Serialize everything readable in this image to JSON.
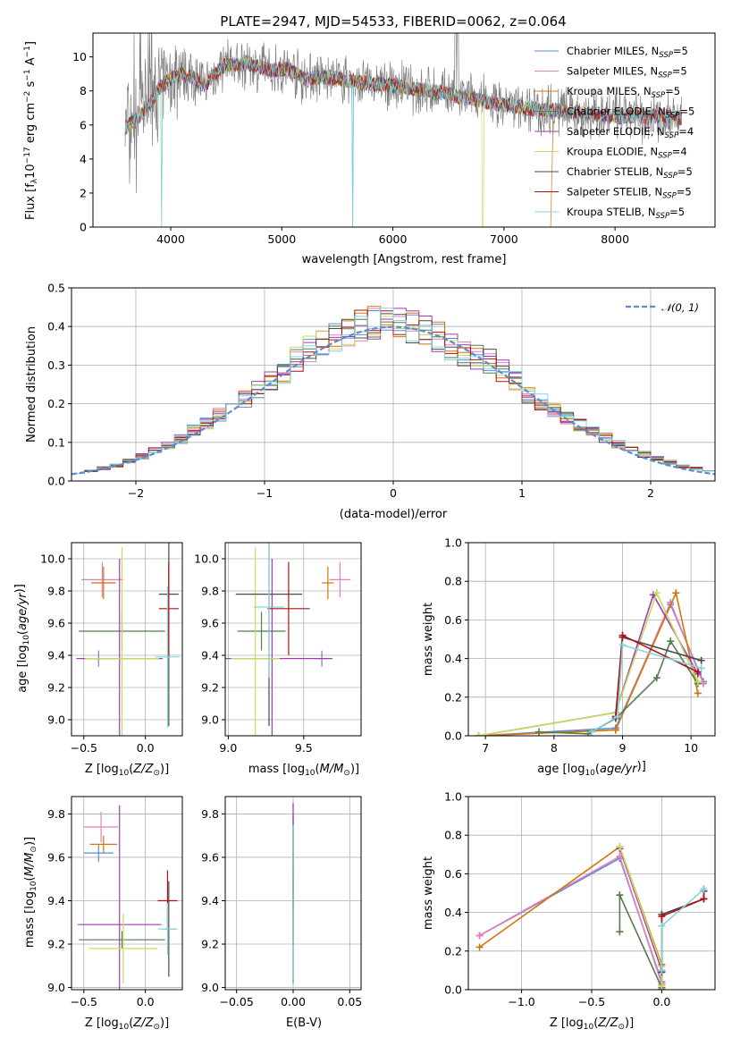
{
  "figure_title": "PLATE=2947, MJD=54533, FIBERID=0062, z=0.064",
  "colors": [
    "#5b8bd5",
    "#e17fbd",
    "#d0760a",
    "#547c4d",
    "#a13bb5",
    "#c7db5b",
    "#4a4a4a",
    "#b50f14",
    "#82d4df"
  ],
  "normal_color": "#5b8bd5",
  "chart_data": [
    {
      "type": "line",
      "panel": "spectrum",
      "title": "PLATE=2947, MJD=54533, FIBERID=0062, z=0.064",
      "xlabel": "wavelength [Angstrom, rest frame]",
      "ylabel": "Flux [f_λ 10^-17 erg cm^-2 s^-1 A^-1]",
      "xlim": [
        3300,
        8900
      ],
      "ylim": [
        0,
        11.4
      ],
      "xticks": [
        4000,
        5000,
        6000,
        7000,
        8000
      ],
      "yticks": [
        0,
        2,
        4,
        6,
        8,
        10
      ],
      "legend_position": "top-right",
      "legend": [
        "Chabrier MILES, N_SSP=5",
        "Salpeter MILES, N_SSP=5",
        "Kroupa MILES, N_SSP=5",
        "Chabrier ELODIE, N_SSP=5",
        "Salpeter ELODIE, N_SSP=4",
        "Kroupa ELODIE, N_SSP=4",
        "Chabrier STELIB, N_SSP=5",
        "Salpeter STELIB, N_SSP=5",
        "Kroupa STELIB, N_SSP=5"
      ],
      "data_color": "#808080",
      "continuum": {
        "wavelength": [
          3590,
          3700,
          3800,
          3900,
          4000,
          4100,
          4200,
          4300,
          4400,
          4500,
          4600,
          4700,
          4800,
          4900,
          5000,
          5100,
          5200,
          5300,
          5400,
          5500,
          5600,
          5700,
          5800,
          5900,
          6000,
          6100,
          6200,
          6300,
          6400,
          6500,
          6600,
          6700,
          6800,
          6900,
          7000,
          7100,
          7200,
          7300,
          7400,
          7500,
          7600,
          7700,
          7800,
          7900,
          8000,
          8100,
          8200,
          8300,
          8400,
          8500,
          8600
        ],
        "flux": [
          5.8,
          6.4,
          7.1,
          8.2,
          8.7,
          9.0,
          8.8,
          8.3,
          9.0,
          9.6,
          9.5,
          9.6,
          9.4,
          9.2,
          9.3,
          9.2,
          8.7,
          8.8,
          8.8,
          8.7,
          8.6,
          8.5,
          8.4,
          8.4,
          8.3,
          8.2,
          8.1,
          8.0,
          7.9,
          7.9,
          7.6,
          7.6,
          7.4,
          7.3,
          7.2,
          7.1,
          7.0,
          6.9,
          6.9,
          6.8,
          6.8,
          6.7,
          6.6,
          6.6,
          6.5,
          6.5,
          6.5,
          6.5,
          6.5,
          6.5,
          6.4
        ]
      },
      "model_range": [
        3590,
        8600
      ],
      "model_drops": [
        3920,
        5640,
        6810,
        7420
      ],
      "emission_lines": [
        6563,
        6585
      ]
    },
    {
      "type": "line",
      "panel": "residuals",
      "xlabel": "(data-model)/error",
      "ylabel": "Normed distribution",
      "xlim": [
        -2.5,
        2.5
      ],
      "ylim": [
        0,
        0.5
      ],
      "xticks": [
        -2,
        -1,
        0,
        1,
        2
      ],
      "yticks": [
        0.0,
        0.1,
        0.2,
        0.3,
        0.4,
        0.5
      ],
      "legend": [
        "𝒩(0, 1)"
      ],
      "legend_position": "top-right",
      "bin_width": 0.1,
      "bin_centers": [
        -2.45,
        -2.35,
        -2.25,
        -2.15,
        -2.05,
        -1.95,
        -1.85,
        -1.75,
        -1.65,
        -1.55,
        -1.45,
        -1.35,
        -1.25,
        -1.15,
        -1.05,
        -0.95,
        -0.85,
        -0.75,
        -0.65,
        -0.55,
        -0.45,
        -0.35,
        -0.25,
        -0.15,
        -0.05,
        0.05,
        0.15,
        0.25,
        0.35,
        0.45,
        0.55,
        0.65,
        0.75,
        0.85,
        0.95,
        1.05,
        1.15,
        1.25,
        1.35,
        1.45,
        1.55,
        1.65,
        1.75,
        1.85,
        1.95,
        2.05,
        2.15,
        2.25,
        2.35,
        2.45
      ],
      "base_hist": [
        0.022,
        0.027,
        0.033,
        0.04,
        0.051,
        0.064,
        0.08,
        0.093,
        0.108,
        0.131,
        0.15,
        0.17,
        0.189,
        0.211,
        0.24,
        0.262,
        0.283,
        0.314,
        0.338,
        0.363,
        0.371,
        0.388,
        0.4,
        0.41,
        0.415,
        0.404,
        0.399,
        0.386,
        0.373,
        0.351,
        0.334,
        0.318,
        0.311,
        0.285,
        0.26,
        0.227,
        0.205,
        0.183,
        0.163,
        0.145,
        0.127,
        0.112,
        0.096,
        0.082,
        0.069,
        0.058,
        0.048,
        0.038,
        0.032,
        0.026
      ],
      "normal_curve": {
        "mean": 0,
        "std": 1
      }
    },
    {
      "type": "scatter",
      "panel": "Z-age errorbars",
      "xlabel": "Z [log10(Z/Z⊙)]",
      "ylabel": "age  [log10(age/yr)]",
      "xlim": [
        -0.6,
        0.3
      ],
      "ylim": [
        8.9,
        10.1
      ],
      "xticks": [
        -0.5,
        0.0
      ],
      "yticks": [
        9.0,
        9.2,
        9.4,
        9.6,
        9.8,
        10.0
      ],
      "points": [
        {
          "x": -0.38,
          "y": 9.38,
          "xerr": 0.12,
          "yerr": 0.05
        },
        {
          "x": -0.35,
          "y": 9.87,
          "xerr": 0.17,
          "yerr": 0.11
        },
        {
          "x": -0.34,
          "y": 9.85,
          "xerr": 0.1,
          "yerr": 0.1
        },
        {
          "x": -0.19,
          "y": 9.55,
          "xerr": 0.35,
          "yerr": 0.12
        },
        {
          "x": -0.21,
          "y": 9.38,
          "xerr": 0.35,
          "yerr": 0.62
        },
        {
          "x": -0.19,
          "y": 9.38,
          "xerr": 0.3,
          "yerr": 0.69
        },
        {
          "x": 0.19,
          "y": 9.78,
          "xerr": 0.08,
          "yerr": 0.82
        },
        {
          "x": 0.19,
          "y": 9.69,
          "xerr": 0.08,
          "yerr": 0.29
        },
        {
          "x": 0.18,
          "y": 9.39,
          "xerr": 0.1,
          "yerr": 0.44
        }
      ]
    },
    {
      "type": "scatter",
      "panel": "mass-age errorbars",
      "xlabel": "mass [log10(M/M⊙)]",
      "xlim": [
        8.98,
        9.88
      ],
      "ylim": [
        8.9,
        10.1
      ],
      "xticks": [
        9.0,
        9.5
      ],
      "yticks": [
        9.0,
        9.2,
        9.4,
        9.6,
        9.8,
        10.0
      ],
      "points": [
        {
          "x": 9.62,
          "y": 9.38,
          "xerr": 0.04,
          "yerr": 0.05
        },
        {
          "x": 9.74,
          "y": 9.87,
          "xerr": 0.07,
          "yerr": 0.11
        },
        {
          "x": 9.66,
          "y": 9.85,
          "xerr": 0.04,
          "yerr": 0.1
        },
        {
          "x": 9.22,
          "y": 9.55,
          "xerr": 0.16,
          "yerr": 0.12
        },
        {
          "x": 9.29,
          "y": 9.38,
          "xerr": 0.4,
          "yerr": 0.62
        },
        {
          "x": 9.18,
          "y": 9.38,
          "xerr": 0.16,
          "yerr": 0.69
        },
        {
          "x": 9.27,
          "y": 9.78,
          "xerr": 0.22,
          "yerr": 0.82
        },
        {
          "x": 9.4,
          "y": 9.69,
          "xerr": 0.14,
          "yerr": 0.29
        },
        {
          "x": 9.27,
          "y": 9.7,
          "xerr": 0.1,
          "yerr": 0.44
        }
      ]
    },
    {
      "type": "line",
      "panel": "age-weights",
      "xlabel": "age  [log10(age/yr)]",
      "ylabel": "mass weight",
      "xlim": [
        6.75,
        10.35
      ],
      "ylim": [
        0,
        1
      ],
      "xticks": [
        7,
        8,
        9,
        10
      ],
      "yticks": [
        0.0,
        0.2,
        0.4,
        0.6,
        0.8,
        1.0
      ],
      "series": [
        {
          "x": [
            6.9,
            8.9,
            9.7,
            10.18
          ],
          "y": [
            0.0,
            0.04,
            0.68,
            0.28
          ]
        },
        {
          "x": [
            6.9,
            8.9,
            9.7,
            10.18
          ],
          "y": [
            0.0,
            0.03,
            0.69,
            0.27
          ]
        },
        {
          "x": [
            6.9,
            8.9,
            9.78,
            10.1
          ],
          "y": [
            0.0,
            0.03,
            0.74,
            0.22
          ]
        },
        {
          "x": [
            7.78,
            8.5,
            8.9,
            9.5,
            9.7,
            10.1
          ],
          "y": [
            0.02,
            0.01,
            0.09,
            0.3,
            0.49,
            0.27
          ]
        },
        {
          "x": [
            6.9,
            8.9,
            9.45,
            10.1
          ],
          "y": [
            0.0,
            0.12,
            0.73,
            0.32
          ]
        },
        {
          "x": [
            6.9,
            8.9,
            9.5,
            10.1
          ],
          "y": [
            0.0,
            0.12,
            0.74,
            0.28
          ]
        },
        {
          "x": [
            8.9,
            9.0,
            10.15
          ],
          "y": [
            0.09,
            0.51,
            0.39
          ]
        },
        {
          "x": [
            8.9,
            9.0,
            10.1
          ],
          "y": [
            0.1,
            0.52,
            0.33
          ]
        },
        {
          "x": [
            8.55,
            8.93,
            9.0,
            10.15
          ],
          "y": [
            0.02,
            0.1,
            0.47,
            0.35
          ]
        }
      ]
    },
    {
      "type": "scatter",
      "panel": "Z-mass errorbars",
      "xlabel": "Z [log10(Z/Z⊙)]",
      "ylabel": "mass [log10(M/M⊙)]",
      "xlim": [
        -0.6,
        0.3
      ],
      "ylim": [
        8.99,
        9.88
      ],
      "xticks": [
        -0.5,
        0.0
      ],
      "yticks": [
        9.0,
        9.2,
        9.4,
        9.6,
        9.8
      ],
      "points": [
        {
          "x": -0.38,
          "y": 9.62,
          "xerr": 0.12,
          "yerr": 0.04
        },
        {
          "x": -0.36,
          "y": 9.74,
          "xerr": 0.14,
          "yerr": 0.07
        },
        {
          "x": -0.34,
          "y": 9.66,
          "xerr": 0.11,
          "yerr": 0.04
        },
        {
          "x": -0.19,
          "y": 9.22,
          "xerr": 0.35,
          "yerr": 0.04
        },
        {
          "x": -0.21,
          "y": 9.29,
          "xerr": 0.34,
          "yerr": 0.55
        },
        {
          "x": -0.18,
          "y": 9.18,
          "xerr": 0.28,
          "yerr": 0.16
        },
        {
          "x": 0.19,
          "y": 9.27,
          "xerr": 0.06,
          "yerr": 0.22
        },
        {
          "x": 0.18,
          "y": 9.4,
          "xerr": 0.08,
          "yerr": 0.14
        },
        {
          "x": 0.18,
          "y": 9.27,
          "xerr": 0.08,
          "yerr": 0.12
        }
      ]
    },
    {
      "type": "scatter",
      "panel": "EBV-mass errorbars",
      "xlabel": "E(B-V)",
      "xlim": [
        -0.06,
        0.06
      ],
      "ylim": [
        8.99,
        9.88
      ],
      "xticks": [
        -0.05,
        0.0,
        0.05
      ],
      "yticks": [
        9.0,
        9.2,
        9.4,
        9.6,
        9.8
      ],
      "points": [
        {
          "x": 0,
          "y": 9.4,
          "xerr": 0,
          "yerr": 0.38
        },
        {
          "x": 0,
          "y": 9.45,
          "xerr": 0,
          "yerr": 0.4
        },
        {
          "x": 0,
          "y": 9.55,
          "xerr": 0,
          "yerr": 0.2
        },
        {
          "x": 0,
          "y": 9.5,
          "xerr": 0,
          "yerr": 0.3
        },
        {
          "x": 0,
          "y": 9.6,
          "xerr": 0,
          "yerr": 0.25
        },
        {
          "x": 0,
          "y": 9.62,
          "xerr": 0,
          "yerr": 0.12
        },
        {
          "x": 0,
          "y": 9.3,
          "xerr": 0,
          "yerr": 0.25
        },
        {
          "x": 0,
          "y": 9.52,
          "xerr": 0,
          "yerr": 0.1
        },
        {
          "x": 0,
          "y": 9.4,
          "xerr": 0,
          "yerr": 0.35
        }
      ]
    },
    {
      "type": "line",
      "panel": "Z-weights",
      "xlabel": "Z [log10(Z/Z⊙)]",
      "ylabel": "mass weight",
      "xlim": [
        -1.38,
        0.38
      ],
      "ylim": [
        0,
        1
      ],
      "xticks": [
        -1.0,
        -0.5,
        0.0
      ],
      "yticks": [
        0.0,
        0.2,
        0.4,
        0.6,
        0.8,
        1.0
      ],
      "series": [
        {
          "x": [
            -1.3,
            -0.3,
            0.0,
            0.0
          ],
          "y": [
            0.28,
            0.68,
            0.04,
            0.0
          ]
        },
        {
          "x": [
            -1.3,
            -0.3,
            0.0,
            0.0
          ],
          "y": [
            0.28,
            0.69,
            0.03,
            0.0
          ]
        },
        {
          "x": [
            -1.3,
            -0.3,
            0.0,
            0.0
          ],
          "y": [
            0.22,
            0.74,
            0.13,
            0.02
          ]
        },
        {
          "x": [
            -0.3,
            -0.3,
            0.0,
            0.0
          ],
          "y": [
            0.3,
            0.49,
            0.01,
            0.0
          ]
        },
        {
          "x": [
            -0.3,
            0.0,
            0.0
          ],
          "y": [
            0.73,
            0.1,
            0.0
          ]
        },
        {
          "x": [
            -0.3,
            0.0,
            0.0
          ],
          "y": [
            0.74,
            0.12,
            0.02
          ]
        },
        {
          "x": [
            0.0,
            0.0,
            0.3,
            0.3
          ],
          "y": [
            0.09,
            0.39,
            0.47,
            0.51
          ]
        },
        {
          "x": [
            0.0,
            0.0,
            0.3,
            0.3
          ],
          "y": [
            0.1,
            0.38,
            0.47,
            0.52
          ]
        },
        {
          "x": [
            0.0,
            0.0,
            0.3
          ],
          "y": [
            0.1,
            0.33,
            0.52
          ]
        }
      ]
    }
  ]
}
